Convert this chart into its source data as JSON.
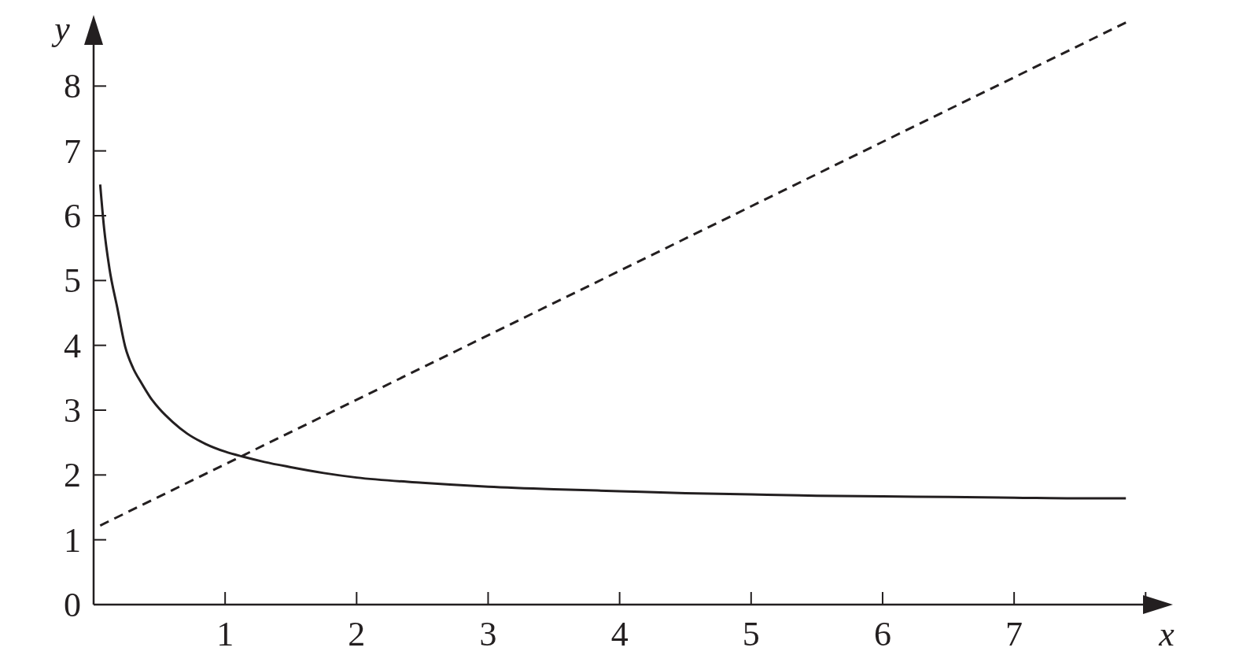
{
  "chart_data": {
    "type": "line",
    "xlabel": "x",
    "ylabel": "y",
    "xlim": [
      0,
      8.1
    ],
    "ylim": [
      0,
      9
    ],
    "xticks": [
      1,
      2,
      3,
      4,
      5,
      6,
      7,
      {
        "value": 8,
        "label": null
      }
    ],
    "yticks": [
      0,
      1,
      2,
      3,
      4,
      5,
      6,
      7,
      8
    ],
    "grid": false,
    "marker": "none",
    "series": [
      {
        "color": "#231f20",
        "line_style": "solid",
        "x": [
          0.05,
          0.08,
          0.12,
          0.18,
          0.24,
          0.3,
          0.36,
          0.43,
          0.5,
          0.6,
          0.71,
          0.85,
          1.0,
          1.14,
          1.3,
          1.5,
          1.75,
          2.0,
          2.5,
          3.0,
          3.5,
          4.0,
          4.5,
          5.0,
          5.5,
          6.0,
          6.5,
          7.0,
          7.5,
          7.85
        ],
        "values": [
          6.48,
          5.8,
          5.19,
          4.58,
          3.98,
          3.65,
          3.43,
          3.2,
          3.02,
          2.82,
          2.64,
          2.48,
          2.36,
          2.28,
          2.2,
          2.12,
          2.03,
          1.96,
          1.88,
          1.82,
          1.78,
          1.75,
          1.72,
          1.7,
          1.68,
          1.67,
          1.66,
          1.65,
          1.64,
          1.64
        ]
      },
      {
        "color": "#231f20",
        "line_style": "dashed",
        "x": [
          0.05,
          7.85
        ],
        "values": [
          1.22,
          8.98
        ]
      }
    ]
  }
}
